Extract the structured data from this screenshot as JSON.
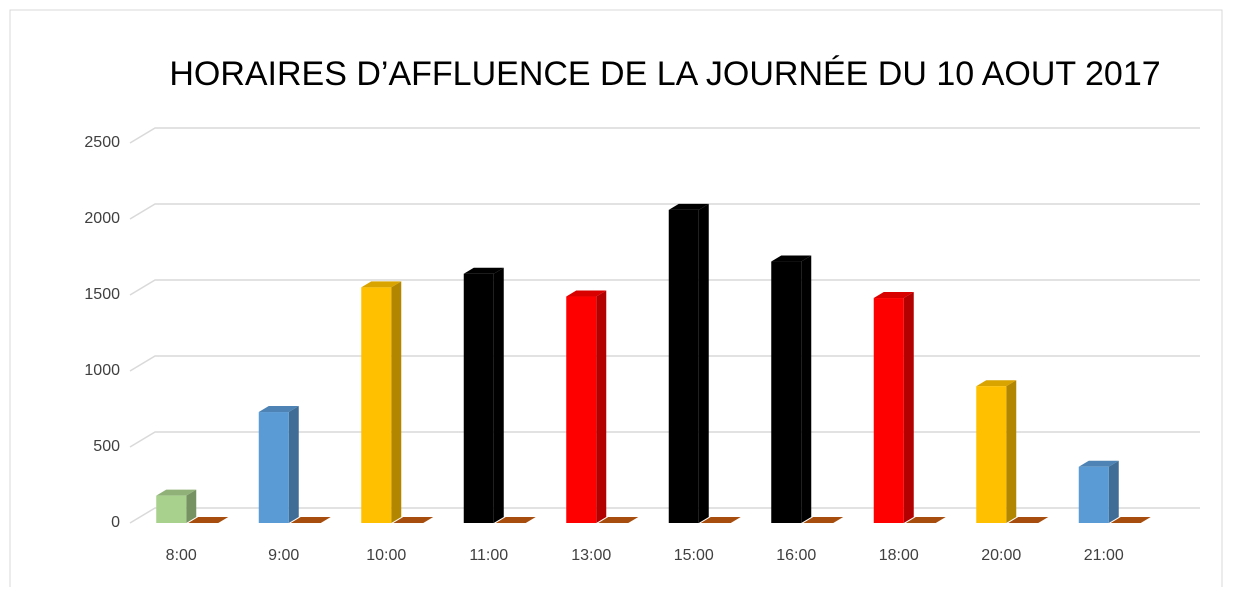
{
  "chart_data": {
    "type": "bar3d",
    "title": "HORAIRES D’AFFLUENCE DE LA JOURNÉE DU 10 AOUT 2017",
    "categories": [
      "8:00",
      "9:00",
      "10:00",
      "11:00",
      "13:00",
      "15:00",
      "16:00",
      "18:00",
      "20:00",
      "21:00"
    ],
    "series": [
      {
        "values": [
          180,
          730,
          1550,
          1640,
          1490,
          2060,
          1720,
          1480,
          900,
          370
        ],
        "colors": [
          "#a9d18e",
          "#5b9bd5",
          "#ffc000",
          "#000000",
          "#ff0000",
          "#000000",
          "#000000",
          "#ff0000",
          "#ffc000",
          "#5b9bd5"
        ]
      },
      {
        "values": [
          0,
          0,
          0,
          0,
          0,
          0,
          0,
          0,
          0,
          0
        ],
        "color": "#c55a11"
      }
    ],
    "ylim": [
      0,
      2500
    ],
    "yticks": [
      0,
      500,
      1000,
      1500,
      2000,
      2500
    ],
    "grid": true
  }
}
